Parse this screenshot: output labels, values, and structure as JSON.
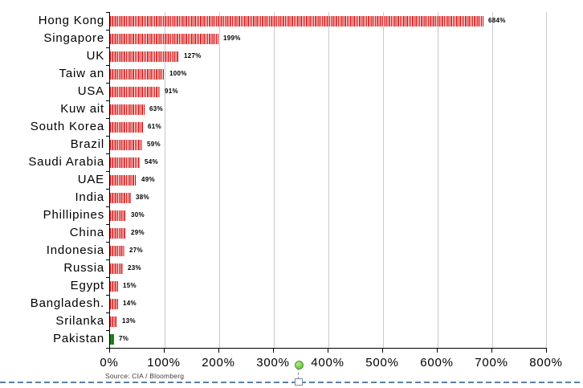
{
  "chart_data": {
    "type": "bar",
    "orientation": "horizontal",
    "title": "",
    "categories": [
      "Hong Kong",
      "Singapore",
      "UK",
      "Taiw an",
      "USA",
      "Kuw ait",
      "South Korea",
      "Brazil",
      "Saudi Arabia",
      "UAE",
      "India",
      "Phillipines",
      "China",
      "Indonesia",
      "Russia",
      "Egypt",
      "Bangladesh.",
      "Srilanka",
      "Pakistan"
    ],
    "values": [
      684,
      199,
      127,
      100,
      91,
      63,
      61,
      59,
      54,
      49,
      38,
      30,
      29,
      27,
      23,
      15,
      14,
      13,
      7
    ],
    "value_labels": [
      "684%",
      "199%",
      "127%",
      "100%",
      "91%",
      "63%",
      "61%",
      "59%",
      "54%",
      "49%",
      "38%",
      "30%",
      "29%",
      "27%",
      "23%",
      "15%",
      "14%",
      "13%",
      "7%"
    ],
    "x_tick_labels": [
      "0%",
      "100%",
      "200%",
      "300%",
      "400%",
      "500%",
      "600%",
      "700%",
      "800%"
    ],
    "xlim": [
      0,
      800
    ],
    "x_tick_step": 100,
    "grid": true,
    "legend": "none",
    "highlight_index": 18,
    "source": "Source: CIA / Bloomberg"
  },
  "colors": {
    "bar_stripe_red": "#d40000",
    "bar_gap_white": "#ffffff",
    "highlight_green_dark": "#0e6e0e",
    "highlight_green_light": "#2c992c",
    "gridline": "#c9c9c9",
    "axis": "#000000",
    "selection_dash": "#5b7fa6",
    "handle_border": "#7a8aa0",
    "rotation_handle_green": "#6ec83f",
    "rotation_handle_border": "#4e9a2e"
  }
}
